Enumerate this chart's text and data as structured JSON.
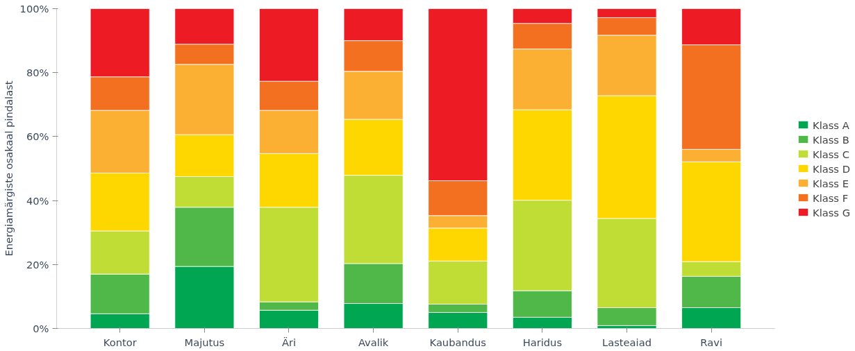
{
  "chart_data": {
    "type": "bar",
    "stacked": true,
    "ylabel": "Energiamärgiste osakaal pindalast",
    "categories": [
      "Kontor",
      "Majutus",
      "Äri",
      "Avalik",
      "Kaubandus",
      "Haridus",
      "Lasteaiad",
      "Ravi"
    ],
    "series": [
      {
        "name": "Klass A",
        "color": "#00a651",
        "values": [
          4.6,
          19.4,
          5.7,
          7.8,
          5.0,
          3.5,
          0.9,
          6.5
        ]
      },
      {
        "name": "Klass B",
        "color": "#50b848",
        "values": [
          12.4,
          18.5,
          2.6,
          12.5,
          2.6,
          8.3,
          5.6,
          9.8
        ]
      },
      {
        "name": "Klass C",
        "color": "#bfdd35",
        "values": [
          13.5,
          9.6,
          29.6,
          27.6,
          13.5,
          28.3,
          27.9,
          4.6
        ]
      },
      {
        "name": "Klass D",
        "color": "#fed600",
        "values": [
          18.1,
          13.1,
          16.8,
          17.5,
          10.3,
          28.3,
          38.4,
          31.2
        ]
      },
      {
        "name": "Klass E",
        "color": "#fbb034",
        "values": [
          19.6,
          22.0,
          13.5,
          15.0,
          3.9,
          19.0,
          18.9,
          3.9
        ]
      },
      {
        "name": "Klass F",
        "color": "#f37021",
        "values": [
          10.5,
          6.3,
          9.1,
          9.6,
          10.9,
          8.0,
          5.5,
          32.7
        ]
      },
      {
        "name": "Klass G",
        "color": "#ed1c24",
        "values": [
          21.3,
          11.1,
          22.7,
          10.0,
          53.8,
          4.6,
          2.8,
          11.3
        ]
      }
    ],
    "ylim": [
      0,
      100
    ],
    "yticks": [
      {
        "value": 0,
        "label": "0%"
      },
      {
        "value": 20,
        "label": "20%"
      },
      {
        "value": 40,
        "label": "40%"
      },
      {
        "value": 60,
        "label": "60%"
      },
      {
        "value": 80,
        "label": "80%"
      },
      {
        "value": 100,
        "label": "100%"
      }
    ],
    "grid": false,
    "legend": "right"
  }
}
